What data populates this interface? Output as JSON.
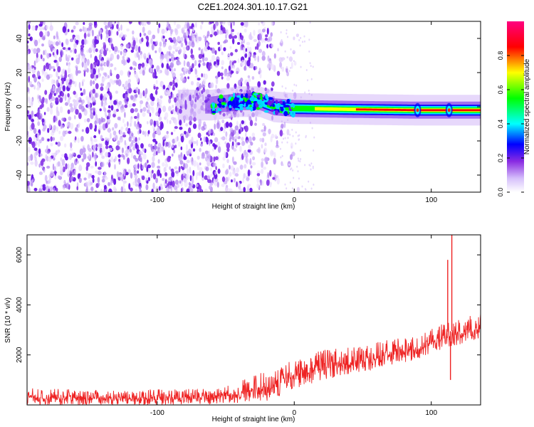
{
  "figure": {
    "title": "C2E1.2024.301.10.17.G21"
  },
  "colors": {
    "snr_line": "#ee2222",
    "colormap": [
      "#ffffff",
      "#c8a8f8",
      "#8a2be2",
      "#0000ff",
      "#00ffff",
      "#00ff00",
      "#ffff00",
      "#ff0000",
      "#ff0080"
    ]
  },
  "chart_data": [
    {
      "type": "heatmap",
      "title": "C2E1.2024.301.10.17.G21",
      "xlabel": "Height of straight line (km)",
      "ylabel": "Frequency (Hz)",
      "xlim": [
        -195,
        136
      ],
      "ylim": [
        -50,
        50
      ],
      "x_ticks": [
        -100,
        0,
        100
      ],
      "y_ticks": [
        -40,
        -20,
        0,
        20,
        40
      ],
      "colorbar": {
        "label": "Normalized spectral amplitude",
        "range": [
          0.0,
          1.0
        ],
        "ticks": [
          0.0,
          0.2,
          0.4,
          0.6,
          0.8
        ]
      },
      "features": {
        "noise_region_x": [
          -195,
          -25
        ],
        "noise_fade_out_x": [
          -40,
          -10
        ],
        "tone_onset_x": -45,
        "strong_tone_start_x": 45,
        "tone_frequency_hz": [
          {
            "x": -60,
            "y": 1
          },
          {
            "x": -40,
            "y": 3
          },
          {
            "x": -25,
            "y": 3
          },
          {
            "x": -15,
            "y": 0
          },
          {
            "x": 0,
            "y": -1
          },
          {
            "x": 40,
            "y": -1.5
          },
          {
            "x": 90,
            "y": -2
          },
          {
            "x": 136,
            "y": -2
          }
        ],
        "disturbances_x": [
          90,
          113
        ]
      }
    },
    {
      "type": "line",
      "xlabel": "Height of straight line (km)",
      "ylabel": "SNR (10 * v/v)",
      "xlim": [
        -195,
        136
      ],
      "ylim": [
        0,
        6800
      ],
      "x_ticks": [
        -100,
        0,
        100
      ],
      "y_ticks": [
        2000,
        4000,
        6000
      ],
      "trend": [
        {
          "x": -195,
          "low": 0,
          "high": 700
        },
        {
          "x": -130,
          "low": 0,
          "high": 600
        },
        {
          "x": -60,
          "low": 0,
          "high": 650
        },
        {
          "x": -20,
          "low": 150,
          "high": 1400
        },
        {
          "x": 0,
          "low": 600,
          "high": 1800
        },
        {
          "x": 20,
          "low": 1000,
          "high": 2200
        },
        {
          "x": 60,
          "low": 1400,
          "high": 2500
        },
        {
          "x": 95,
          "low": 1900,
          "high": 2900
        },
        {
          "x": 110,
          "low": 2300,
          "high": 3300
        },
        {
          "x": 136,
          "low": 2600,
          "high": 3700
        }
      ],
      "spikes": [
        {
          "x": 112,
          "y": 5800
        },
        {
          "x": 115,
          "y": 6800
        },
        {
          "x": 114,
          "y": 1000
        }
      ]
    }
  ]
}
